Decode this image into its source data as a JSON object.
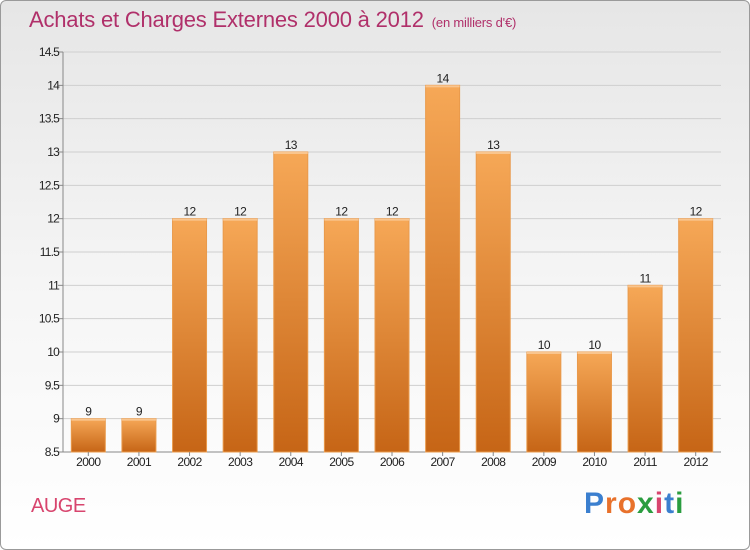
{
  "title": "Achats et Charges Externes 2000 à 2012",
  "unit_note": "(en milliers d'€)",
  "commune": "AUGE",
  "logo_text": "Proxiti",
  "colors": {
    "bar_light": "#f6a857",
    "bar_dark": "#c66516",
    "title": "#b0306a",
    "commune": "#d8456e"
  },
  "chart_data": {
    "type": "bar",
    "title": "Achats et Charges Externes 2000 à 2012",
    "subtitle": "(en milliers d'€)",
    "categories": [
      "2000",
      "2001",
      "2002",
      "2003",
      "2004",
      "2005",
      "2006",
      "2007",
      "2008",
      "2009",
      "2010",
      "2011",
      "2012"
    ],
    "values": [
      9,
      9,
      12,
      12,
      13,
      12,
      12,
      14,
      13,
      10,
      10,
      11,
      12
    ],
    "data_labels": [
      "9",
      "9",
      "12",
      "12",
      "13",
      "12",
      "12",
      "14",
      "13",
      "10",
      "10",
      "11",
      "12"
    ],
    "ylim": [
      8.5,
      14.5
    ],
    "yticks": [
      "8.5",
      "9",
      "9.5",
      "10",
      "10.5",
      "11",
      "11.5",
      "12",
      "12.5",
      "13",
      "13.5",
      "14",
      "14.5"
    ],
    "grid": true,
    "legend": "none"
  }
}
